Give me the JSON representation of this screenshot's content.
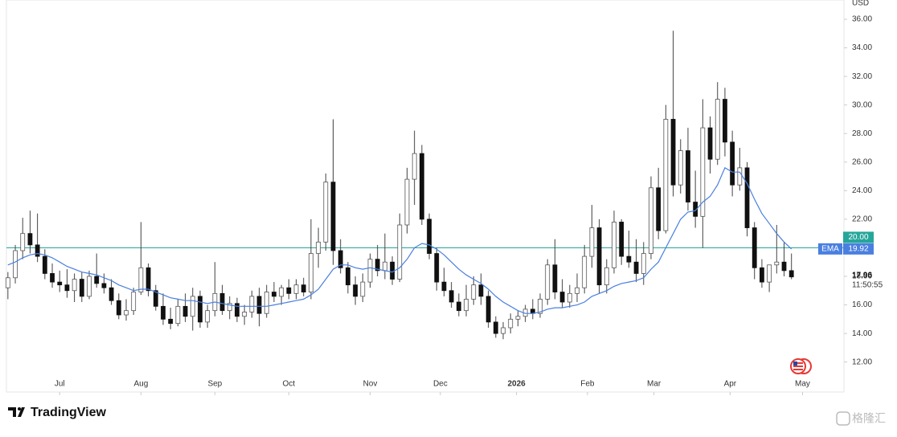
{
  "chart_data": {
    "type": "candlestick",
    "currency": "USD",
    "ylim": [
      9.9,
      37.35
    ],
    "yticks": [
      {
        "value": 12,
        "label": "12.00"
      },
      {
        "value": 14,
        "label": "14.00"
      },
      {
        "value": 16,
        "label": "16.00"
      },
      {
        "value": 18,
        "label": "18.00"
      },
      {
        "value": 20,
        "label": "20.00"
      },
      {
        "value": 22,
        "label": "22.00"
      },
      {
        "value": 24,
        "label": "24.00"
      },
      {
        "value": 26,
        "label": "26.00"
      },
      {
        "value": 28,
        "label": "28.00"
      },
      {
        "value": 30,
        "label": "30.00"
      },
      {
        "value": 32,
        "label": "32.00"
      },
      {
        "value": 34,
        "label": "34.00"
      },
      {
        "value": 36,
        "label": "36.00"
      }
    ],
    "xlim": [
      -0.2,
      113.1
    ],
    "xticks": [
      {
        "value": 7,
        "label": "Jul"
      },
      {
        "value": 18,
        "label": "Aug"
      },
      {
        "value": 28,
        "label": "Sep"
      },
      {
        "value": 38,
        "label": "Oct"
      },
      {
        "value": 49,
        "label": "Nov"
      },
      {
        "value": 58.5,
        "label": "Dec"
      },
      {
        "value": 68.8,
        "label": "2026"
      },
      {
        "value": 78.4,
        "label": "Feb"
      },
      {
        "value": 87.4,
        "label": "Mar"
      },
      {
        "value": 97.7,
        "label": "Apr"
      },
      {
        "value": 107.5,
        "label": "May"
      }
    ],
    "up_color": "#ffffff",
    "down_color": "#111111",
    "wick_color": "#444444",
    "candles": [
      [
        17.2,
        18.3,
        16.4,
        17.9
      ],
      [
        17.9,
        20.2,
        17.5,
        19.8
      ],
      [
        19.8,
        22.1,
        19.2,
        21.0
      ],
      [
        21.0,
        22.6,
        19.6,
        20.2
      ],
      [
        20.2,
        22.4,
        19.0,
        19.4
      ],
      [
        19.4,
        19.9,
        17.8,
        18.2
      ],
      [
        18.2,
        18.9,
        17.2,
        17.6
      ],
      [
        17.6,
        18.4,
        16.9,
        17.4
      ],
      [
        17.4,
        18.5,
        16.5,
        17.0
      ],
      [
        17.0,
        18.2,
        16.2,
        17.8
      ],
      [
        17.8,
        18.3,
        16.2,
        16.6
      ],
      [
        16.6,
        18.4,
        16.4,
        18.0
      ],
      [
        18.0,
        19.6,
        17.2,
        17.5
      ],
      [
        17.5,
        18.2,
        16.8,
        17.2
      ],
      [
        17.2,
        17.8,
        16.0,
        16.3
      ],
      [
        16.3,
        16.8,
        15.0,
        15.3
      ],
      [
        15.3,
        16.4,
        14.9,
        15.6
      ],
      [
        15.6,
        17.2,
        15.3,
        16.9
      ],
      [
        16.9,
        21.8,
        16.7,
        18.6
      ],
      [
        18.6,
        18.9,
        16.6,
        17.0
      ],
      [
        17.0,
        17.4,
        15.6,
        15.9
      ],
      [
        15.9,
        16.8,
        14.6,
        15.0
      ],
      [
        15.0,
        15.8,
        14.3,
        14.7
      ],
      [
        14.7,
        16.4,
        14.5,
        15.9
      ],
      [
        15.9,
        16.8,
        14.8,
        15.2
      ],
      [
        15.2,
        17.2,
        14.2,
        16.6
      ],
      [
        16.6,
        17.0,
        14.4,
        14.8
      ],
      [
        14.8,
        16.0,
        14.4,
        15.6
      ],
      [
        15.6,
        19.0,
        15.2,
        16.8
      ],
      [
        16.8,
        17.4,
        15.3,
        15.6
      ],
      [
        15.6,
        16.6,
        15.0,
        16.1
      ],
      [
        16.1,
        16.5,
        14.8,
        15.2
      ],
      [
        15.2,
        16.0,
        14.6,
        15.5
      ],
      [
        15.5,
        17.0,
        15.1,
        16.6
      ],
      [
        16.6,
        17.2,
        14.5,
        15.4
      ],
      [
        15.4,
        17.4,
        15.1,
        16.9
      ],
      [
        16.9,
        17.6,
        16.2,
        16.6
      ],
      [
        16.6,
        17.4,
        16.0,
        17.2
      ],
      [
        17.2,
        17.8,
        16.4,
        16.8
      ],
      [
        16.8,
        17.8,
        16.4,
        17.4
      ],
      [
        17.4,
        17.9,
        16.6,
        16.9
      ],
      [
        16.9,
        22.0,
        16.4,
        19.6
      ],
      [
        19.6,
        21.4,
        18.6,
        20.4
      ],
      [
        20.4,
        25.2,
        19.8,
        24.6
      ],
      [
        24.6,
        29.0,
        18.8,
        19.8
      ],
      [
        19.8,
        20.6,
        18.2,
        18.6
      ],
      [
        18.6,
        19.0,
        16.8,
        17.4
      ],
      [
        17.4,
        18.0,
        16.0,
        16.6
      ],
      [
        16.6,
        18.2,
        16.2,
        17.6
      ],
      [
        17.6,
        19.6,
        17.2,
        19.2
      ],
      [
        19.2,
        20.2,
        18.0,
        18.4
      ],
      [
        18.4,
        21.0,
        17.8,
        19.0
      ],
      [
        19.0,
        19.4,
        17.4,
        17.8
      ],
      [
        17.8,
        22.4,
        17.6,
        21.6
      ],
      [
        21.6,
        25.6,
        21.0,
        24.8
      ],
      [
        24.8,
        28.2,
        23.0,
        26.6
      ],
      [
        26.6,
        27.2,
        21.6,
        22.0
      ],
      [
        22.0,
        22.4,
        19.2,
        19.6
      ],
      [
        19.6,
        20.0,
        17.0,
        17.6
      ],
      [
        17.6,
        18.6,
        16.6,
        17.0
      ],
      [
        17.0,
        17.6,
        15.8,
        16.2
      ],
      [
        16.2,
        16.8,
        15.2,
        15.6
      ],
      [
        15.6,
        17.4,
        15.2,
        16.4
      ],
      [
        16.4,
        18.0,
        16.0,
        17.4
      ],
      [
        17.4,
        18.2,
        16.0,
        16.6
      ],
      [
        16.6,
        17.0,
        14.4,
        14.8
      ],
      [
        14.8,
        15.2,
        13.7,
        14.0
      ],
      [
        14.0,
        14.8,
        13.6,
        14.4
      ],
      [
        14.4,
        15.4,
        14.0,
        15.0
      ],
      [
        15.0,
        15.6,
        14.5,
        15.2
      ],
      [
        15.2,
        16.0,
        14.8,
        15.7
      ],
      [
        15.7,
        16.4,
        15.0,
        15.4
      ],
      [
        15.4,
        16.8,
        15.1,
        16.4
      ],
      [
        16.4,
        19.2,
        16.0,
        18.8
      ],
      [
        18.8,
        20.6,
        16.4,
        16.9
      ],
      [
        16.9,
        17.8,
        15.8,
        16.2
      ],
      [
        16.2,
        17.4,
        15.8,
        16.8
      ],
      [
        16.8,
        18.2,
        16.2,
        17.2
      ],
      [
        17.2,
        20.2,
        16.8,
        19.4
      ],
      [
        19.4,
        23.0,
        18.6,
        21.4
      ],
      [
        21.4,
        22.0,
        16.8,
        17.4
      ],
      [
        17.4,
        19.2,
        16.8,
        18.6
      ],
      [
        18.6,
        22.6,
        18.2,
        21.8
      ],
      [
        21.8,
        22.0,
        18.8,
        19.4
      ],
      [
        19.4,
        21.2,
        18.6,
        19.0
      ],
      [
        19.0,
        20.6,
        17.6,
        18.2
      ],
      [
        18.2,
        20.4,
        17.4,
        19.6
      ],
      [
        19.6,
        25.0,
        19.2,
        24.2
      ],
      [
        24.2,
        25.6,
        20.6,
        21.2
      ],
      [
        21.2,
        30.0,
        21.0,
        29.0
      ],
      [
        29.0,
        35.2,
        23.6,
        24.4
      ],
      [
        24.4,
        27.6,
        23.8,
        26.8
      ],
      [
        26.8,
        28.4,
        22.6,
        23.2
      ],
      [
        23.2,
        25.4,
        21.4,
        22.2
      ],
      [
        22.2,
        30.4,
        20.0,
        28.4
      ],
      [
        28.4,
        29.2,
        25.2,
        26.2
      ],
      [
        26.2,
        31.6,
        25.8,
        30.4
      ],
      [
        30.4,
        31.2,
        26.4,
        27.4
      ],
      [
        27.4,
        28.2,
        23.6,
        24.4
      ],
      [
        24.4,
        27.0,
        24.0,
        25.6
      ],
      [
        25.6,
        26.0,
        20.8,
        21.4
      ],
      [
        21.4,
        21.8,
        17.8,
        18.6
      ],
      [
        18.6,
        19.2,
        17.2,
        17.6
      ],
      [
        17.6,
        18.8,
        16.9,
        18.8
      ],
      [
        18.8,
        21.6,
        18.2,
        19.0
      ],
      [
        19.0,
        20.4,
        18.0,
        18.4
      ],
      [
        18.4,
        19.6,
        17.8,
        17.96
      ]
    ],
    "series": [
      {
        "name": "EMA",
        "color": "#4a7fe0",
        "values": [
          18.8,
          19.0,
          19.3,
          19.5,
          19.6,
          19.5,
          19.3,
          19.0,
          18.7,
          18.5,
          18.3,
          18.2,
          18.1,
          17.9,
          17.7,
          17.4,
          17.2,
          17.0,
          17.1,
          17.1,
          16.9,
          16.7,
          16.5,
          16.4,
          16.3,
          16.3,
          16.2,
          16.1,
          16.2,
          16.1,
          16.0,
          15.9,
          15.9,
          15.9,
          15.9,
          15.9,
          16.0,
          16.1,
          16.2,
          16.3,
          16.4,
          16.7,
          17.1,
          17.8,
          18.5,
          18.8,
          18.8,
          18.6,
          18.5,
          18.6,
          18.5,
          18.4,
          18.3,
          18.6,
          19.2,
          20.0,
          20.3,
          20.2,
          19.9,
          19.5,
          19.0,
          18.5,
          18.1,
          17.8,
          17.5,
          17.1,
          16.6,
          16.2,
          15.9,
          15.6,
          15.4,
          15.4,
          15.5,
          15.7,
          15.8,
          15.8,
          15.9,
          16.0,
          16.2,
          16.6,
          16.8,
          17.0,
          17.3,
          17.5,
          17.6,
          17.7,
          17.9,
          18.5,
          19.0,
          20.0,
          21.0,
          22.0,
          22.5,
          22.6,
          23.2,
          23.6,
          24.4,
          25.6,
          25.3,
          25.3,
          24.5,
          23.4,
          22.4,
          21.7,
          21.0,
          20.4,
          19.92
        ]
      }
    ],
    "hline": {
      "value": 20,
      "label": "20.00",
      "color": "#26a69a"
    },
    "countdown": "11:50:55",
    "branding": "TradingView",
    "watermark": "格隆汇"
  }
}
